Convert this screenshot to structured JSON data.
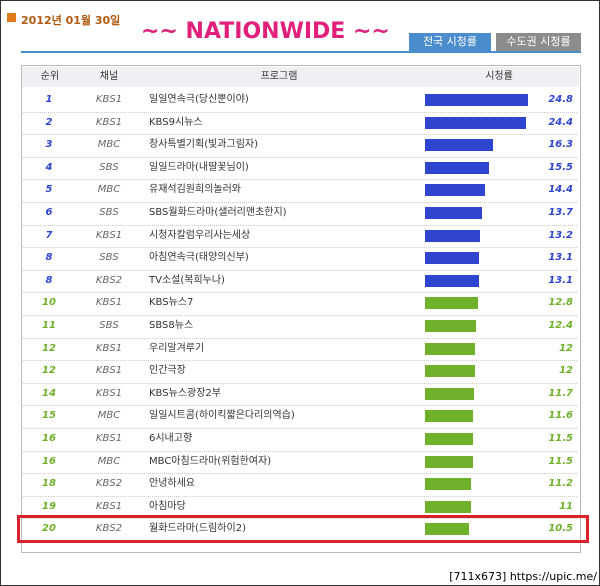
{
  "header": {
    "date": "2012년 01월 30일",
    "title": "~~ NATIONWIDE ~~",
    "tabs": [
      "전국 시청률",
      "수도권 시청률"
    ]
  },
  "table": {
    "columns": [
      "순위",
      "채널",
      "프로그램",
      "시청률"
    ],
    "rows": [
      {
        "rank": 1,
        "channel": "KBS1",
        "program": "일일연속극(당신뿐이야)",
        "rating": 24.8,
        "color": "#2f45d0"
      },
      {
        "rank": 2,
        "channel": "KBS1",
        "program": "KBS9시뉴스",
        "rating": 24.4,
        "color": "#2f45d0"
      },
      {
        "rank": 3,
        "channel": "MBC",
        "program": "창사특별기획(빛과그림자)",
        "rating": 16.3,
        "color": "#2f45d0"
      },
      {
        "rank": 4,
        "channel": "SBS",
        "program": "일일드라마(내딸꽃님이)",
        "rating": 15.5,
        "color": "#2f45d0"
      },
      {
        "rank": 5,
        "channel": "MBC",
        "program": "유재석김원희의놀러와",
        "rating": 14.4,
        "color": "#2f45d0"
      },
      {
        "rank": 6,
        "channel": "SBS",
        "program": "SBS월화드라마(샐러리맨초한지)",
        "rating": 13.7,
        "color": "#2f45d0"
      },
      {
        "rank": 7,
        "channel": "KBS1",
        "program": "시청자칼럼우리사는세상",
        "rating": 13.2,
        "color": "#2f45d0"
      },
      {
        "rank": 8,
        "channel": "SBS",
        "program": "아침연속극(태양의신부)",
        "rating": 13.1,
        "color": "#2f45d0"
      },
      {
        "rank": 8,
        "channel": "KBS2",
        "program": "TV소설(복희누나)",
        "rating": 13.1,
        "color": "#2f45d0"
      },
      {
        "rank": 10,
        "channel": "KBS1",
        "program": "KBS뉴스7",
        "rating": 12.8,
        "color": "#6fb12a"
      },
      {
        "rank": 11,
        "channel": "SBS",
        "program": "SBS8뉴스",
        "rating": 12.4,
        "color": "#6fb12a"
      },
      {
        "rank": 12,
        "channel": "KBS1",
        "program": "우리말겨루기",
        "rating": 12,
        "color": "#6fb12a"
      },
      {
        "rank": 12,
        "channel": "KBS1",
        "program": "인간극장",
        "rating": 12,
        "color": "#6fb12a"
      },
      {
        "rank": 14,
        "channel": "KBS1",
        "program": "KBS뉴스광장2부",
        "rating": 11.7,
        "color": "#6fb12a"
      },
      {
        "rank": 15,
        "channel": "MBC",
        "program": "일일시트콤(하이킥짧은다리의역습)",
        "rating": 11.6,
        "color": "#6fb12a"
      },
      {
        "rank": 16,
        "channel": "KBS1",
        "program": "6시내고향",
        "rating": 11.5,
        "color": "#6fb12a"
      },
      {
        "rank": 16,
        "channel": "MBC",
        "program": "MBC아침드라마(위험한여자)",
        "rating": 11.5,
        "color": "#6fb12a"
      },
      {
        "rank": 18,
        "channel": "KBS2",
        "program": "안녕하세요",
        "rating": 11.2,
        "color": "#6fb12a"
      },
      {
        "rank": 19,
        "channel": "KBS1",
        "program": "아침마당",
        "rating": 11,
        "color": "#6fb12a"
      },
      {
        "rank": 20,
        "channel": "KBS2",
        "program": "월화드라마(드림하이2)",
        "rating": 10.5,
        "color": "#6fb12a"
      }
    ]
  },
  "watermark": "[711x673] https://upic.me/"
}
